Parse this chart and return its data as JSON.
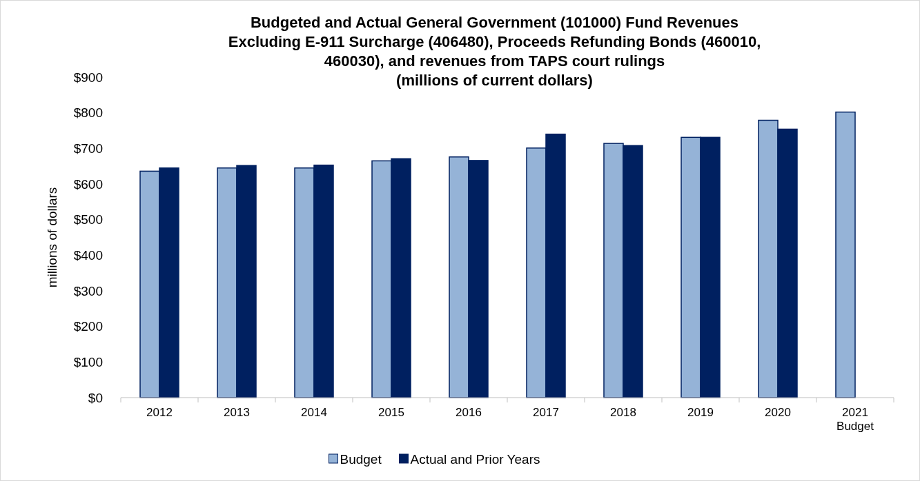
{
  "chart_data": {
    "type": "bar",
    "title": "Budgeted and Actual General Government (101000) Fund Revenues\nExcluding E-911 Surcharge (406480), Proceeds Refunding Bonds (460010,\n460030), and revenues from TAPS court rulings\n(millions of current dollars)",
    "ylabel": "millions of dollars",
    "categories": [
      "2012",
      "2013",
      "2014",
      "2015",
      "2016",
      "2017",
      "2018",
      "2019",
      "2020",
      "2021\nBudget"
    ],
    "series": [
      {
        "name": "Budget",
        "color": "#95b3d7",
        "values": [
          636,
          645,
          645,
          665,
          676,
          701,
          714,
          731,
          779,
          802
        ]
      },
      {
        "name": "Actual and Prior Years",
        "color": "#002060",
        "values": [
          645,
          652,
          653,
          671,
          666,
          740,
          708,
          731,
          754,
          null
        ]
      }
    ],
    "ylim": [
      0,
      900
    ],
    "yticks": [
      {
        "value": 0,
        "label": "$0"
      },
      {
        "value": 100,
        "label": "$100"
      },
      {
        "value": 200,
        "label": "$200"
      },
      {
        "value": 300,
        "label": "$300"
      },
      {
        "value": 400,
        "label": "$400"
      },
      {
        "value": 500,
        "label": "$500"
      },
      {
        "value": 600,
        "label": "$600"
      },
      {
        "value": 700,
        "label": "$700"
      },
      {
        "value": 800,
        "label": "$800"
      },
      {
        "value": 900,
        "label": "$900"
      }
    ],
    "grid": false,
    "legend": "bottom"
  }
}
